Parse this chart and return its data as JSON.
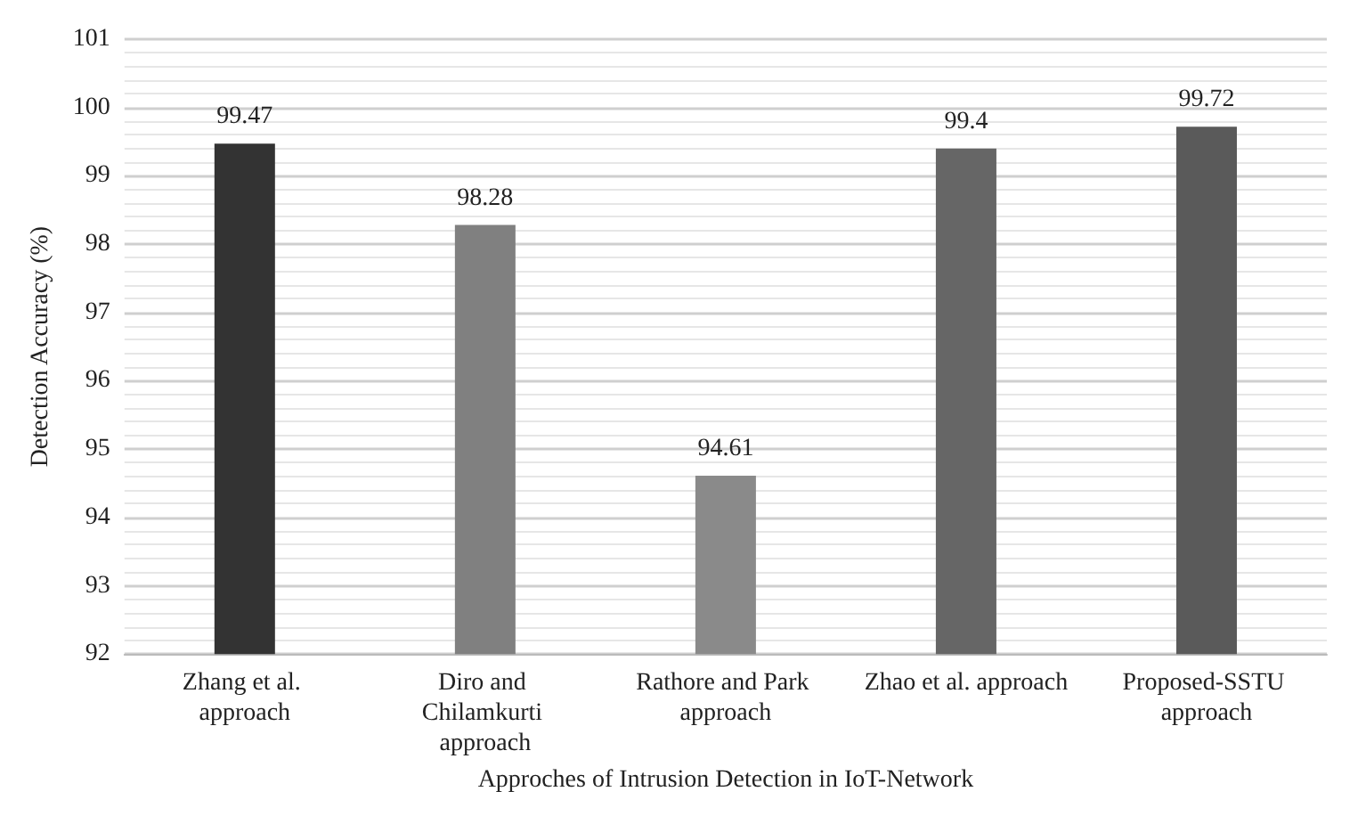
{
  "chart_data": {
    "type": "bar",
    "xlabel": "Approches of Intrusion Detection in IoT-Network",
    "ylabel": "Detection Accuracy (%)",
    "categories": [
      "Zhang et al. approach",
      "Diro and Chilamkurti approach",
      "Rathore and Park approach",
      "Zhao et al. approach",
      "Proposed-SSTU approach"
    ],
    "values": [
      99.47,
      98.28,
      94.61,
      99.4,
      99.72
    ],
    "colors": [
      "#333333",
      "#808080",
      "#8a8a8a",
      "#666666",
      "#5a5a5a"
    ],
    "ylim": [
      92,
      101
    ],
    "yticks": [
      92,
      93,
      94,
      95,
      96,
      97,
      98,
      99,
      100,
      101
    ],
    "grid": true,
    "data_labels": true
  }
}
